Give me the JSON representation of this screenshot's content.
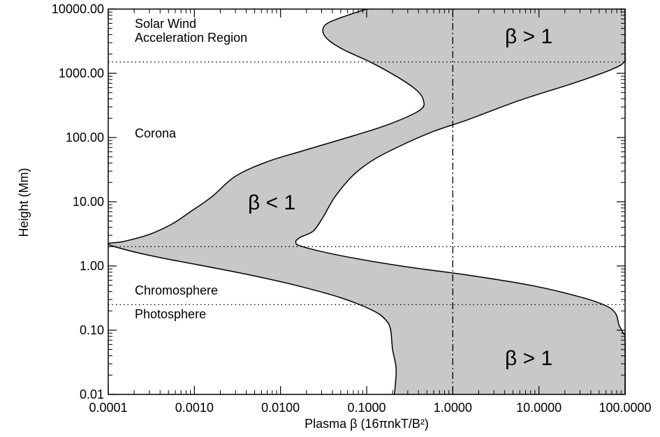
{
  "chart_data": {
    "type": "area",
    "xlabel": "Plasma β (16πnkT/B²)",
    "ylabel": "Height (Mm)",
    "xscale": "log",
    "yscale": "log",
    "xlim": [
      0.0001,
      100
    ],
    "ylim": [
      0.01,
      10000
    ],
    "x_ticks": [
      "0.0001",
      "0.0010",
      "0.0100",
      "0.1000",
      "1.0000",
      "10.0000",
      "100.0000"
    ],
    "y_ticks": [
      "0.01",
      "0.10",
      "1.00",
      "10.00",
      "100.00",
      "1000.00",
      "10000.00"
    ],
    "fill_color": "#c8c8c8",
    "region_labels": [
      "Solar Wind",
      "Acceleration Region",
      "Corona",
      "Chromosphere",
      "Photosphere"
    ],
    "beta_labels": [
      "β > 1",
      "β < 1",
      "β > 1"
    ],
    "reference_lines": [
      {
        "orientation": "horizontal",
        "style": "dotted",
        "value": 1500
      },
      {
        "orientation": "horizontal",
        "style": "dotted",
        "value": 2
      },
      {
        "orientation": "horizontal",
        "style": "dotted",
        "value": 0.25
      },
      {
        "orientation": "vertical",
        "style": "dashdot",
        "value": 1
      }
    ],
    "series": [
      {
        "boundary": "left",
        "points": [
          [
            0.1,
            10000
          ],
          [
            0.06,
            8000
          ],
          [
            0.035,
            6000
          ],
          [
            0.031,
            4500
          ],
          [
            0.036,
            3300
          ],
          [
            0.055,
            2300
          ],
          [
            0.11,
            1500
          ],
          [
            0.22,
            900
          ],
          [
            0.36,
            580
          ],
          [
            0.45,
            400
          ],
          [
            0.42,
            270
          ],
          [
            0.18,
            160
          ],
          [
            0.06,
            100
          ],
          [
            0.018,
            62
          ],
          [
            0.007,
            42
          ],
          [
            0.003,
            25
          ],
          [
            0.0016,
            12
          ],
          [
            0.0009,
            7
          ],
          [
            0.00055,
            4.5
          ],
          [
            0.0003,
            3.1
          ],
          [
            0.00015,
            2.4
          ],
          [
            0.0001,
            2.2
          ],
          [
            0.00017,
            1.75
          ],
          [
            0.0004,
            1.35
          ],
          [
            0.0013,
            1.0
          ],
          [
            0.0045,
            0.72
          ],
          [
            0.015,
            0.5
          ],
          [
            0.05,
            0.32
          ],
          [
            0.12,
            0.2
          ],
          [
            0.17,
            0.14
          ],
          [
            0.19,
            0.1
          ],
          [
            0.2,
            0.05
          ],
          [
            0.22,
            0.025
          ],
          [
            0.21,
            0.01
          ]
        ]
      },
      {
        "boundary": "right",
        "points": [
          [
            100,
            10000
          ],
          [
            100,
            2000
          ],
          [
            98,
            1500
          ],
          [
            70,
            1150
          ],
          [
            25,
            700
          ],
          [
            6,
            380
          ],
          [
            1.5,
            190
          ],
          [
            0.6,
            125
          ],
          [
            0.25,
            75
          ],
          [
            0.12,
            45
          ],
          [
            0.07,
            26
          ],
          [
            0.043,
            12
          ],
          [
            0.031,
            5.7
          ],
          [
            0.024,
            3.5
          ],
          [
            0.017,
            2.8
          ],
          [
            0.015,
            2.35
          ],
          [
            0.018,
            2.0
          ],
          [
            0.05,
            1.45
          ],
          [
            0.25,
            1.0
          ],
          [
            1.5,
            0.72
          ],
          [
            8,
            0.5
          ],
          [
            30,
            0.33
          ],
          [
            60,
            0.24
          ],
          [
            78,
            0.18
          ],
          [
            85,
            0.12
          ],
          [
            95,
            0.09
          ],
          [
            100,
            0.07
          ],
          [
            100,
            0.01
          ]
        ]
      }
    ]
  }
}
